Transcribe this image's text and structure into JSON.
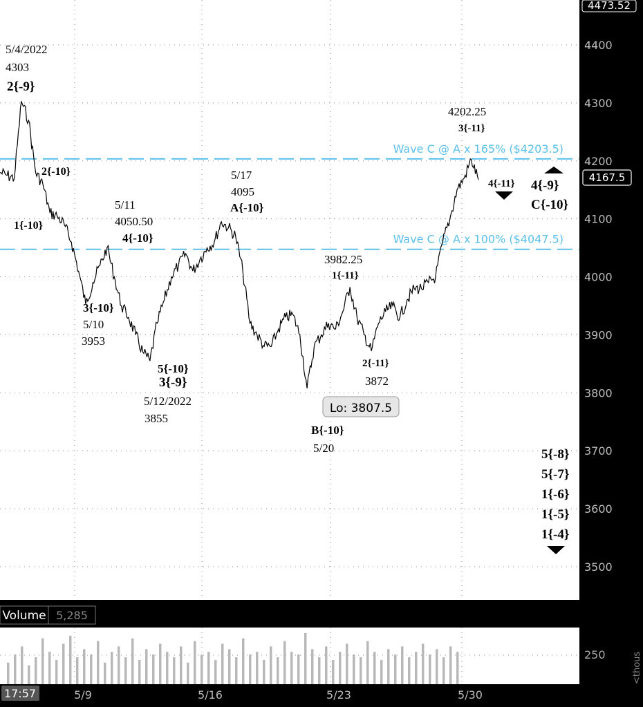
{
  "chart_data": {
    "type": "line",
    "series": [
      {
        "x": [
          "5/6",
          "5/6",
          "5/6",
          "5/6",
          "5/6",
          "5/9",
          "5/9",
          "5/9",
          "5/9",
          "5/9",
          "5/10",
          "5/10",
          "5/10",
          "5/10",
          "5/11",
          "5/11",
          "5/11",
          "5/11",
          "5/12",
          "5/12",
          "5/12",
          "5/12",
          "5/13",
          "5/13",
          "5/13",
          "5/13",
          "5/16",
          "5/16",
          "5/16",
          "5/16",
          "5/17",
          "5/17",
          "5/17",
          "5/17",
          "5/18",
          "5/18",
          "5/18",
          "5/18",
          "5/19",
          "5/19",
          "5/19",
          "5/19",
          "5/20",
          "5/20",
          "5/20",
          "5/20",
          "5/20",
          "5/23",
          "5/23",
          "5/23",
          "5/23",
          "5/24",
          "5/24",
          "5/24",
          "5/24",
          "5/25",
          "5/25",
          "5/25",
          "5/25",
          "5/26",
          "5/26",
          "5/26",
          "5/26",
          "5/27",
          "5/27",
          "5/27",
          "5/27",
          "5/27"
        ],
        "values": [
          4180,
          4175,
          4170,
          4303,
          4270,
          4180,
          4160,
          4110,
          4105,
          4090,
          4060,
          4010,
          3953,
          3990,
          4020,
          4050.5,
          4000,
          3950,
          3930,
          3900,
          3870,
          3855,
          3920,
          3960,
          4000,
          4020,
          4040,
          4010,
          4030,
          4050,
          4060,
          4095,
          4085,
          4070,
          4010,
          3920,
          3900,
          3880,
          3880,
          3910,
          3930,
          3935,
          3900,
          3807.5,
          3880,
          3900,
          3920,
          3910,
          3940,
          3982.25,
          3930,
          3900,
          3872,
          3920,
          3940,
          3950,
          3930,
          3960,
          3980,
          3980,
          3990,
          4000,
          4060,
          4100,
          4150,
          4170,
          4202.25,
          4167.5
        ]
      }
    ],
    "xlabel": "",
    "ylabel": "",
    "ylim": [
      3450,
      4475
    ],
    "yticks": [
      "4400",
      "4300",
      "4200",
      "4100",
      "4000",
      "3900",
      "3800",
      "3700",
      "3600",
      "3500"
    ],
    "xticks": [
      "5/9",
      "5/16",
      "5/23",
      "5/30"
    ],
    "grid": true,
    "current_price": "4167.5",
    "axis_top_value": "4473.52",
    "time_label": "17:57",
    "axis_unit_fragment": "<thous",
    "horizontal_lines": [
      {
        "value": 4203.5,
        "label": "Wave C @ A x 165% ($4203.5)",
        "color": "#5bc0eb"
      },
      {
        "value": 4047.5,
        "label": "Wave C @ A x 100% ($4047.5)",
        "color": "#5bc0eb"
      }
    ],
    "lo_label": "Lo: 3807.5",
    "annotations": [
      "5/4/2022",
      "4303",
      "2{-9}",
      "2{-10}",
      "1{-10}",
      "5/11",
      "4050.50",
      "4{-10}",
      "3{-10}",
      "5/10",
      "3953",
      "5{-10}",
      "3{-9}",
      "5/12/2022",
      "3855",
      "5/17",
      "4095",
      "A{-10}",
      "3982.25",
      "1{-11}",
      "2{-11}",
      "3872",
      "B{-10}",
      "5/20",
      "4202.25",
      "3{-11}",
      "4{-11}",
      "4{-9}",
      "C{-10}",
      "5{-8}",
      "5{-7}",
      "1{-6}",
      "1{-5}",
      "1{-4}"
    ],
    "volume": {
      "label": "Volume",
      "value": "5,285",
      "ytick": "250",
      "bars": [
        0.4,
        0.55,
        0.7,
        0.35,
        0.5,
        0.85,
        0.6,
        0.45,
        0.75,
        0.9,
        0.5,
        0.65,
        0.55,
        0.8,
        0.4,
        0.6,
        0.7,
        0.5,
        0.85,
        0.45,
        0.65,
        0.55,
        0.75,
        0.6,
        0.5,
        0.7,
        0.4,
        0.8,
        0.55,
        0.6,
        0.45,
        0.75,
        0.65,
        0.5,
        0.85,
        0.55,
        0.6,
        0.45,
        0.7,
        0.5,
        0.8,
        0.6,
        0.55,
        0.95,
        0.65,
        0.5,
        0.7,
        0.45,
        0.6,
        0.75,
        0.55,
        0.5,
        0.8,
        0.6,
        0.45,
        0.65,
        0.55,
        0.7,
        0.5,
        0.6,
        0.75,
        0.55,
        0.65,
        0.5,
        0.7,
        0.6
      ]
    }
  },
  "colors": {
    "plot_bg": "#ffffff",
    "axis_bg": "#000000",
    "price": "#000000",
    "guide": "#5bc0eb",
    "volume_bar": "#b8b8b8"
  }
}
